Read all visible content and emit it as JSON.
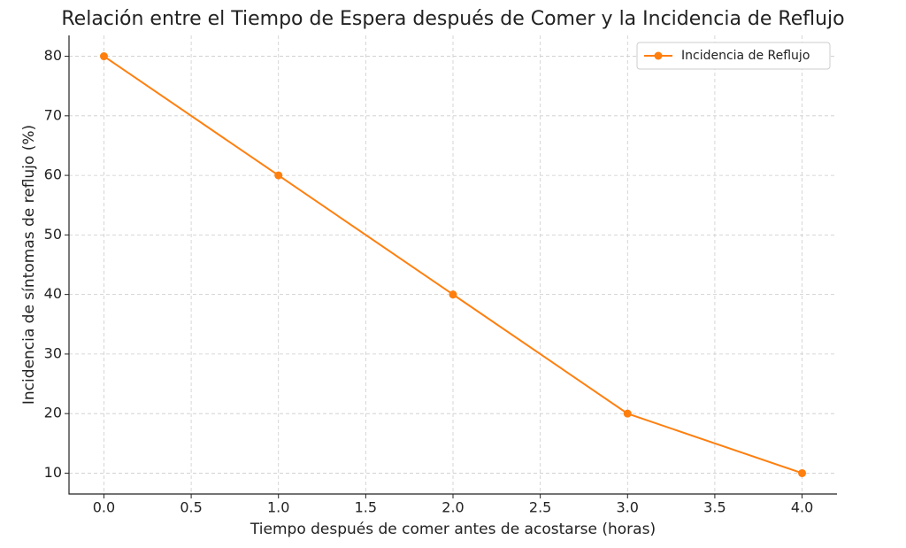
{
  "chart_data": {
    "type": "line",
    "title": "Relación entre el Tiempo de Espera después de Comer y la Incidencia de Reflujo",
    "xlabel": "Tiempo después de comer antes de acostarse (horas)",
    "ylabel": "Incidencia de síntomas de reflujo (%)",
    "x": [
      0,
      1,
      2,
      3,
      4
    ],
    "series": [
      {
        "name": "Incidencia de Reflujo",
        "color": "#ff7f0e",
        "values": [
          80,
          60,
          40,
          20,
          10
        ]
      }
    ],
    "xlim": [
      -0.2,
      4.2
    ],
    "xticks": [
      {
        "value": 0,
        "label": "0.0"
      },
      {
        "value": 0.5,
        "label": "0.5"
      },
      {
        "value": 1,
        "label": "1.0"
      },
      {
        "value": 1.5,
        "label": "1.5"
      },
      {
        "value": 2,
        "label": "2.0"
      },
      {
        "value": 2.5,
        "label": "2.5"
      },
      {
        "value": 3,
        "label": "3.0"
      },
      {
        "value": 3.5,
        "label": "3.5"
      },
      {
        "value": 4,
        "label": "4.0"
      }
    ],
    "ylim": [
      6.5,
      83.5
    ],
    "yticks": [
      10,
      20,
      30,
      40,
      50,
      60,
      70,
      80
    ],
    "grid": true,
    "legend": "upper right"
  }
}
